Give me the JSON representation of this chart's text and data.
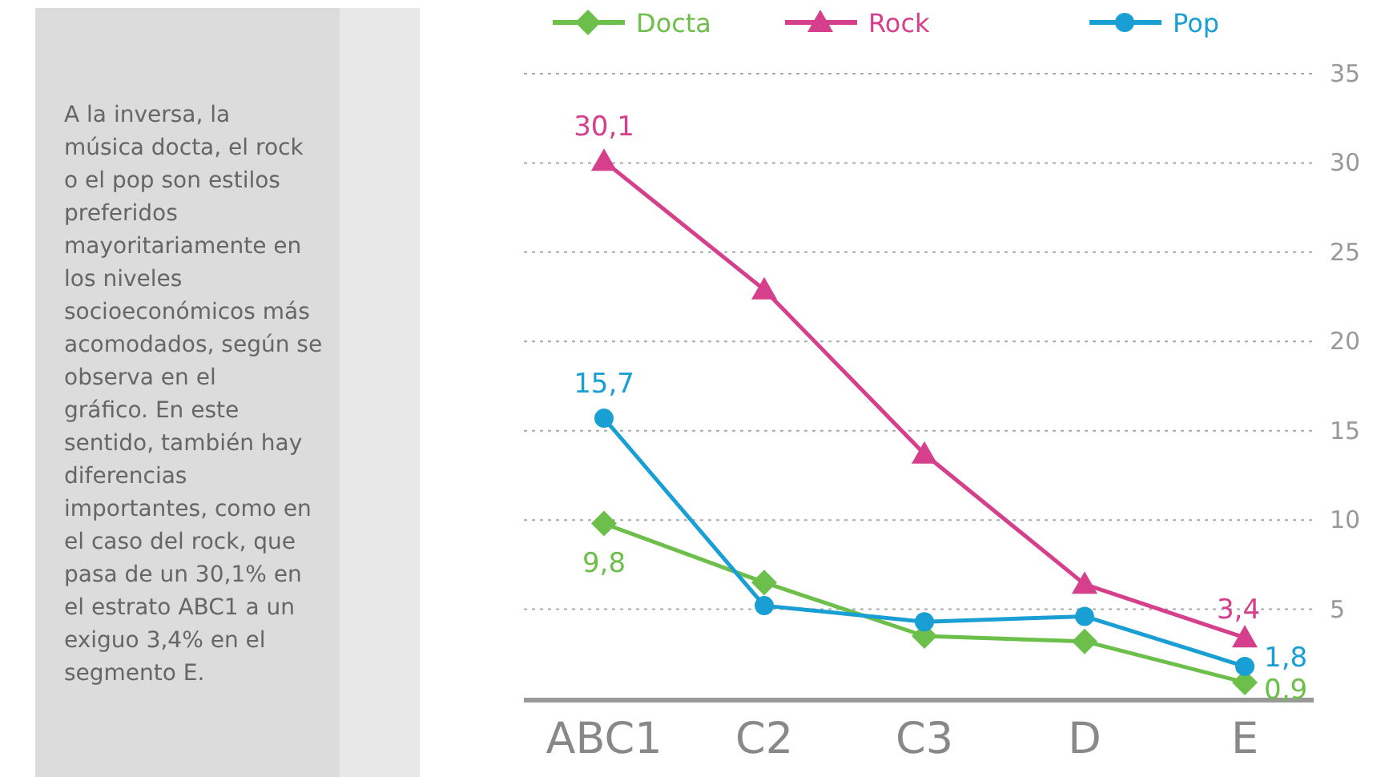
{
  "chart_data": {
    "type": "line",
    "categories": [
      "ABC1",
      "C2",
      "C3",
      "D",
      "E"
    ],
    "series": [
      {
        "name": "Docta",
        "color": "#6dbf4b",
        "marker": "diamond",
        "values": [
          9.8,
          6.5,
          3.5,
          3.2,
          0.9
        ],
        "value_labels": [
          "9,8",
          null,
          null,
          null,
          "0,9"
        ]
      },
      {
        "name": "Rock",
        "color": "#d63f8c",
        "marker": "triangle",
        "values": [
          30.1,
          22.9,
          13.7,
          6.4,
          3.4
        ],
        "value_labels": [
          "30,1",
          null,
          null,
          null,
          "3,4"
        ]
      },
      {
        "name": "Pop",
        "color": "#1a9fd4",
        "marker": "circle",
        "values": [
          15.7,
          5.2,
          4.3,
          4.6,
          1.8
        ],
        "value_labels": [
          "15,7",
          null,
          null,
          null,
          "1,8"
        ]
      }
    ],
    "ylim": [
      0,
      35
    ],
    "yticks": [
      5,
      10,
      15,
      20,
      25,
      30,
      35
    ],
    "grid": "y",
    "legend": "top",
    "annotations": [
      "A la inversa, la música docta, el rock o el pop son estilos preferidos mayoritariamente en los niveles socioeconómicos más acomodados, según se observa en el gráfico. En este sentido, también hay diferencias importantes, como en el caso del rock, que pasa de un 30,1% en el estrato ABC1 a un exiguo 3,4% en el segmento E."
    ]
  }
}
